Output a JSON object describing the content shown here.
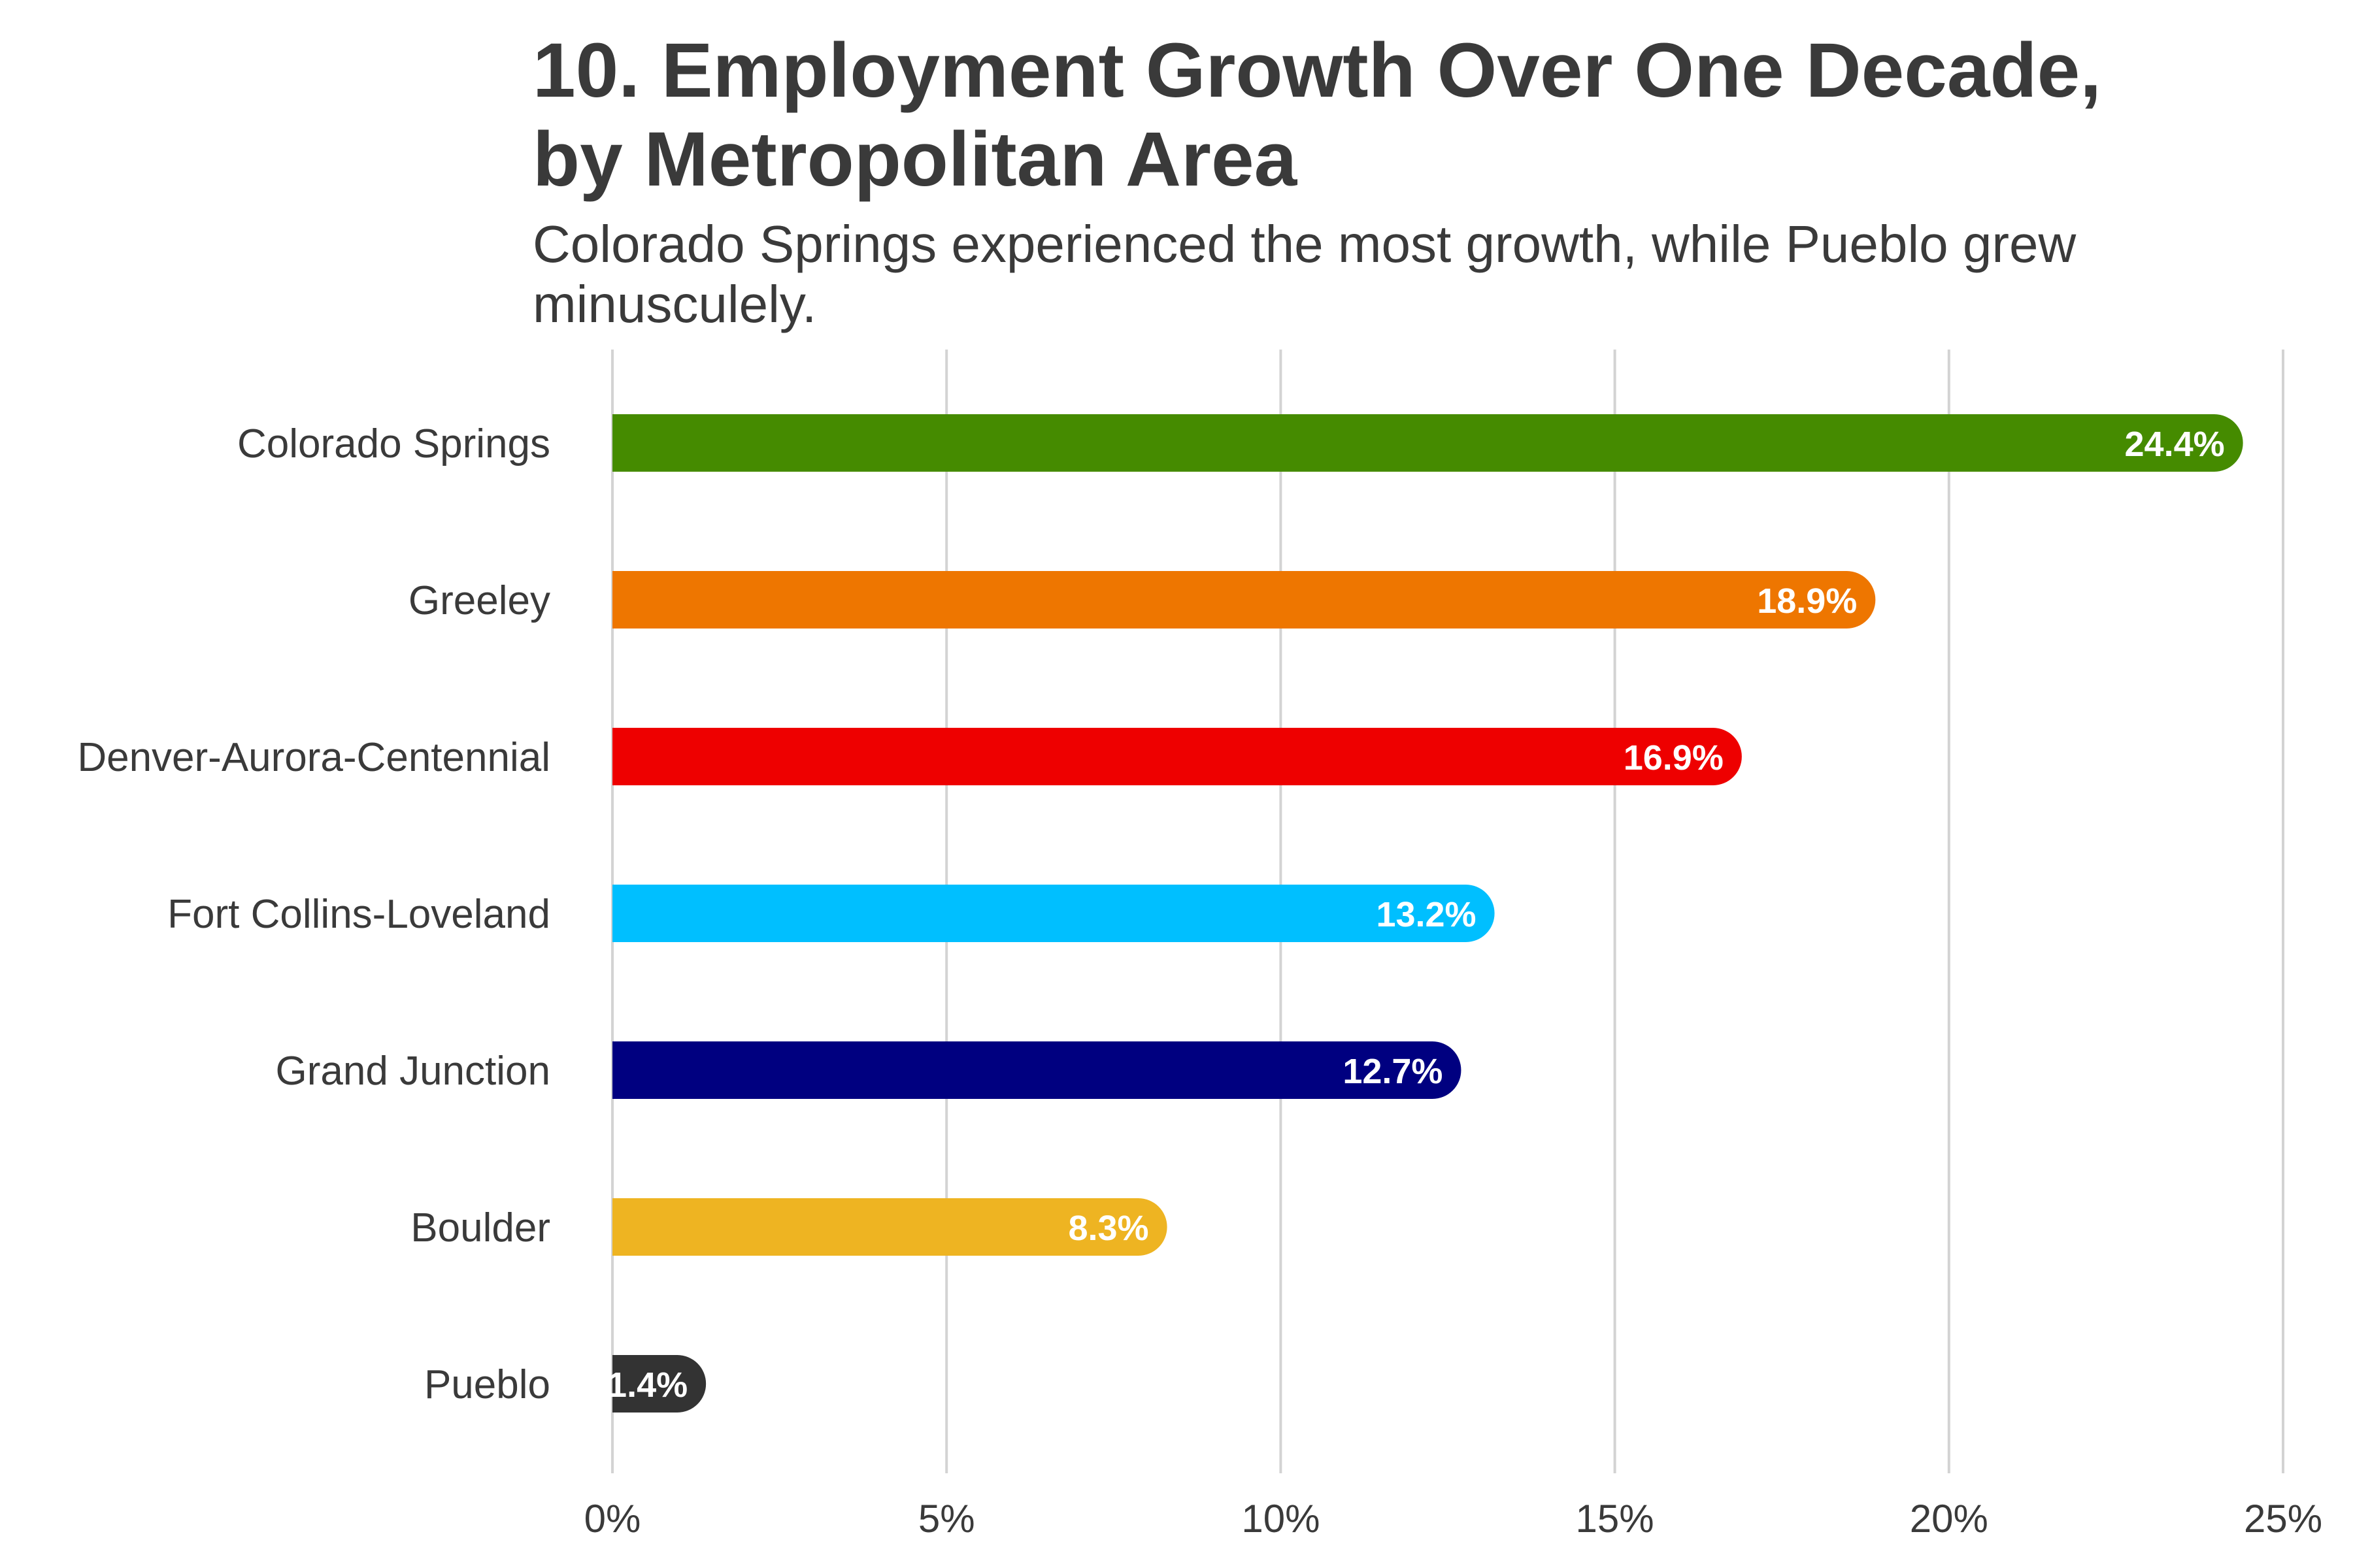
{
  "chart_data": {
    "type": "bar",
    "orientation": "horizontal",
    "title_lines": [
      "10. Employment Growth Over One Decade,",
      "by Metropolitan Area"
    ],
    "subtitle_lines": [
      "Colorado Springs experienced the most growth, while Pueblo grew",
      "minusculely."
    ],
    "xlabel": "",
    "ylabel": "",
    "categories": [
      "Colorado Springs",
      "Greeley",
      "Denver-Aurora-Centennial",
      "Fort Collins-Loveland",
      "Grand Junction",
      "Boulder",
      "Pueblo"
    ],
    "values": [
      24.4,
      18.9,
      16.9,
      13.2,
      12.7,
      8.3,
      1.4
    ],
    "value_labels": [
      "24.4%",
      "18.9%",
      "16.9%",
      "13.2%",
      "12.7%",
      "8.3%",
      "1.4%"
    ],
    "colors": [
      "#458b00",
      "#ee7600",
      "#ee0000",
      "#00bfff",
      "#000080",
      "#eeb422",
      "#333333"
    ],
    "xlim": [
      0,
      25
    ],
    "x_ticks": [
      0,
      5,
      10,
      15,
      20,
      25
    ],
    "x_tick_labels": [
      "0%",
      "5%",
      "10%",
      "15%",
      "20%",
      "25%"
    ],
    "grid": "vertical",
    "legend": "none"
  }
}
